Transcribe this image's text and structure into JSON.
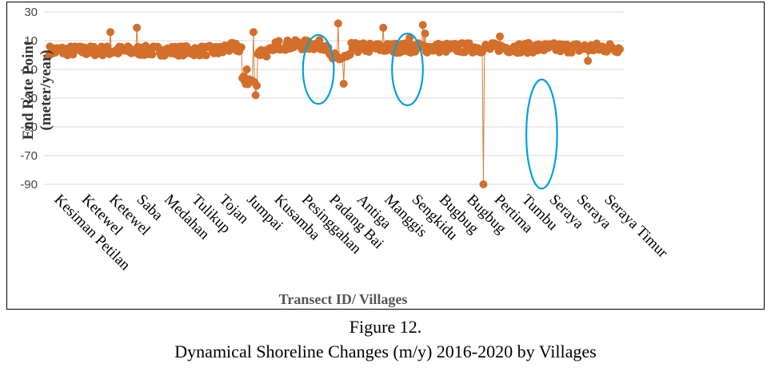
{
  "chart_data": {
    "type": "scatter",
    "title": "",
    "ylabel_line1": "End Rate Point",
    "ylabel_line2": "(meter/year)",
    "xlabel": "Transect ID/ Villages",
    "yticks": [
      30,
      10,
      -10,
      -30,
      -50,
      -70,
      -90
    ],
    "ylim": [
      -90,
      30
    ],
    "grid": true,
    "n_points": 520,
    "categories": [
      "Kesiman Petilan",
      "Ketewel",
      "Ketewel",
      "Saba",
      "Medahan",
      "Tulikup",
      "Tojan",
      "Jumpai",
      "Kusamba",
      "Pesinggahan",
      "Padang Bai",
      "Antiga",
      "Manggis",
      "Sengkidu",
      "Bugbug",
      "Bugbug",
      "Pertima",
      "Tumbu",
      "Seraya",
      "Seraya",
      "Seraya Timur"
    ],
    "category_start_index": [
      0,
      25,
      50,
      75,
      100,
      125,
      150,
      175,
      200,
      225,
      250,
      275,
      300,
      325,
      350,
      375,
      400,
      425,
      450,
      475,
      500
    ],
    "series": [
      {
        "name": "",
        "color": "#d36f2a",
        "segments": [
          {
            "from": 0,
            "to": 160,
            "value": 3
          },
          {
            "from": 160,
            "to": 176,
            "value": 5
          },
          {
            "from": 176,
            "to": 190,
            "value": -18
          },
          {
            "from": 190,
            "to": 205,
            "value": 2
          },
          {
            "from": 205,
            "to": 255,
            "value": 7
          },
          {
            "from": 255,
            "to": 275,
            "value": -2
          },
          {
            "from": 275,
            "to": 520,
            "value": 5
          }
        ],
        "outliers": [
          {
            "index": 56,
            "value": 16
          },
          {
            "index": 80,
            "value": 19
          },
          {
            "index": 186,
            "value": 16
          },
          {
            "index": 188,
            "value": -28
          },
          {
            "index": 180,
            "value": -10
          },
          {
            "index": 263,
            "value": 22
          },
          {
            "index": 268,
            "value": -20
          },
          {
            "index": 304,
            "value": 19
          },
          {
            "index": 328,
            "value": 12
          },
          {
            "index": 340,
            "value": 21
          },
          {
            "index": 342,
            "value": 15
          },
          {
            "index": 395,
            "value": -90
          },
          {
            "index": 410,
            "value": 13
          },
          {
            "index": 490,
            "value": -4
          }
        ]
      }
    ],
    "annotations": [
      {
        "type": "ellipse",
        "color": "#00a0e0",
        "center_index": 245,
        "center_value": -10,
        "rx_points": 14,
        "ry_value": 24
      },
      {
        "type": "ellipse",
        "color": "#00a0e0",
        "center_index": 326,
        "center_value": -10,
        "rx_points": 14,
        "ry_value": 25
      },
      {
        "type": "ellipse",
        "color": "#00a0e0",
        "center_index": 448,
        "center_value": -55,
        "rx_points": 14,
        "ry_value": 38
      }
    ]
  },
  "caption": {
    "figure": "Figure 12.",
    "title": "Dynamical Shoreline Changes (m/y) 2016-2020 by Villages"
  }
}
